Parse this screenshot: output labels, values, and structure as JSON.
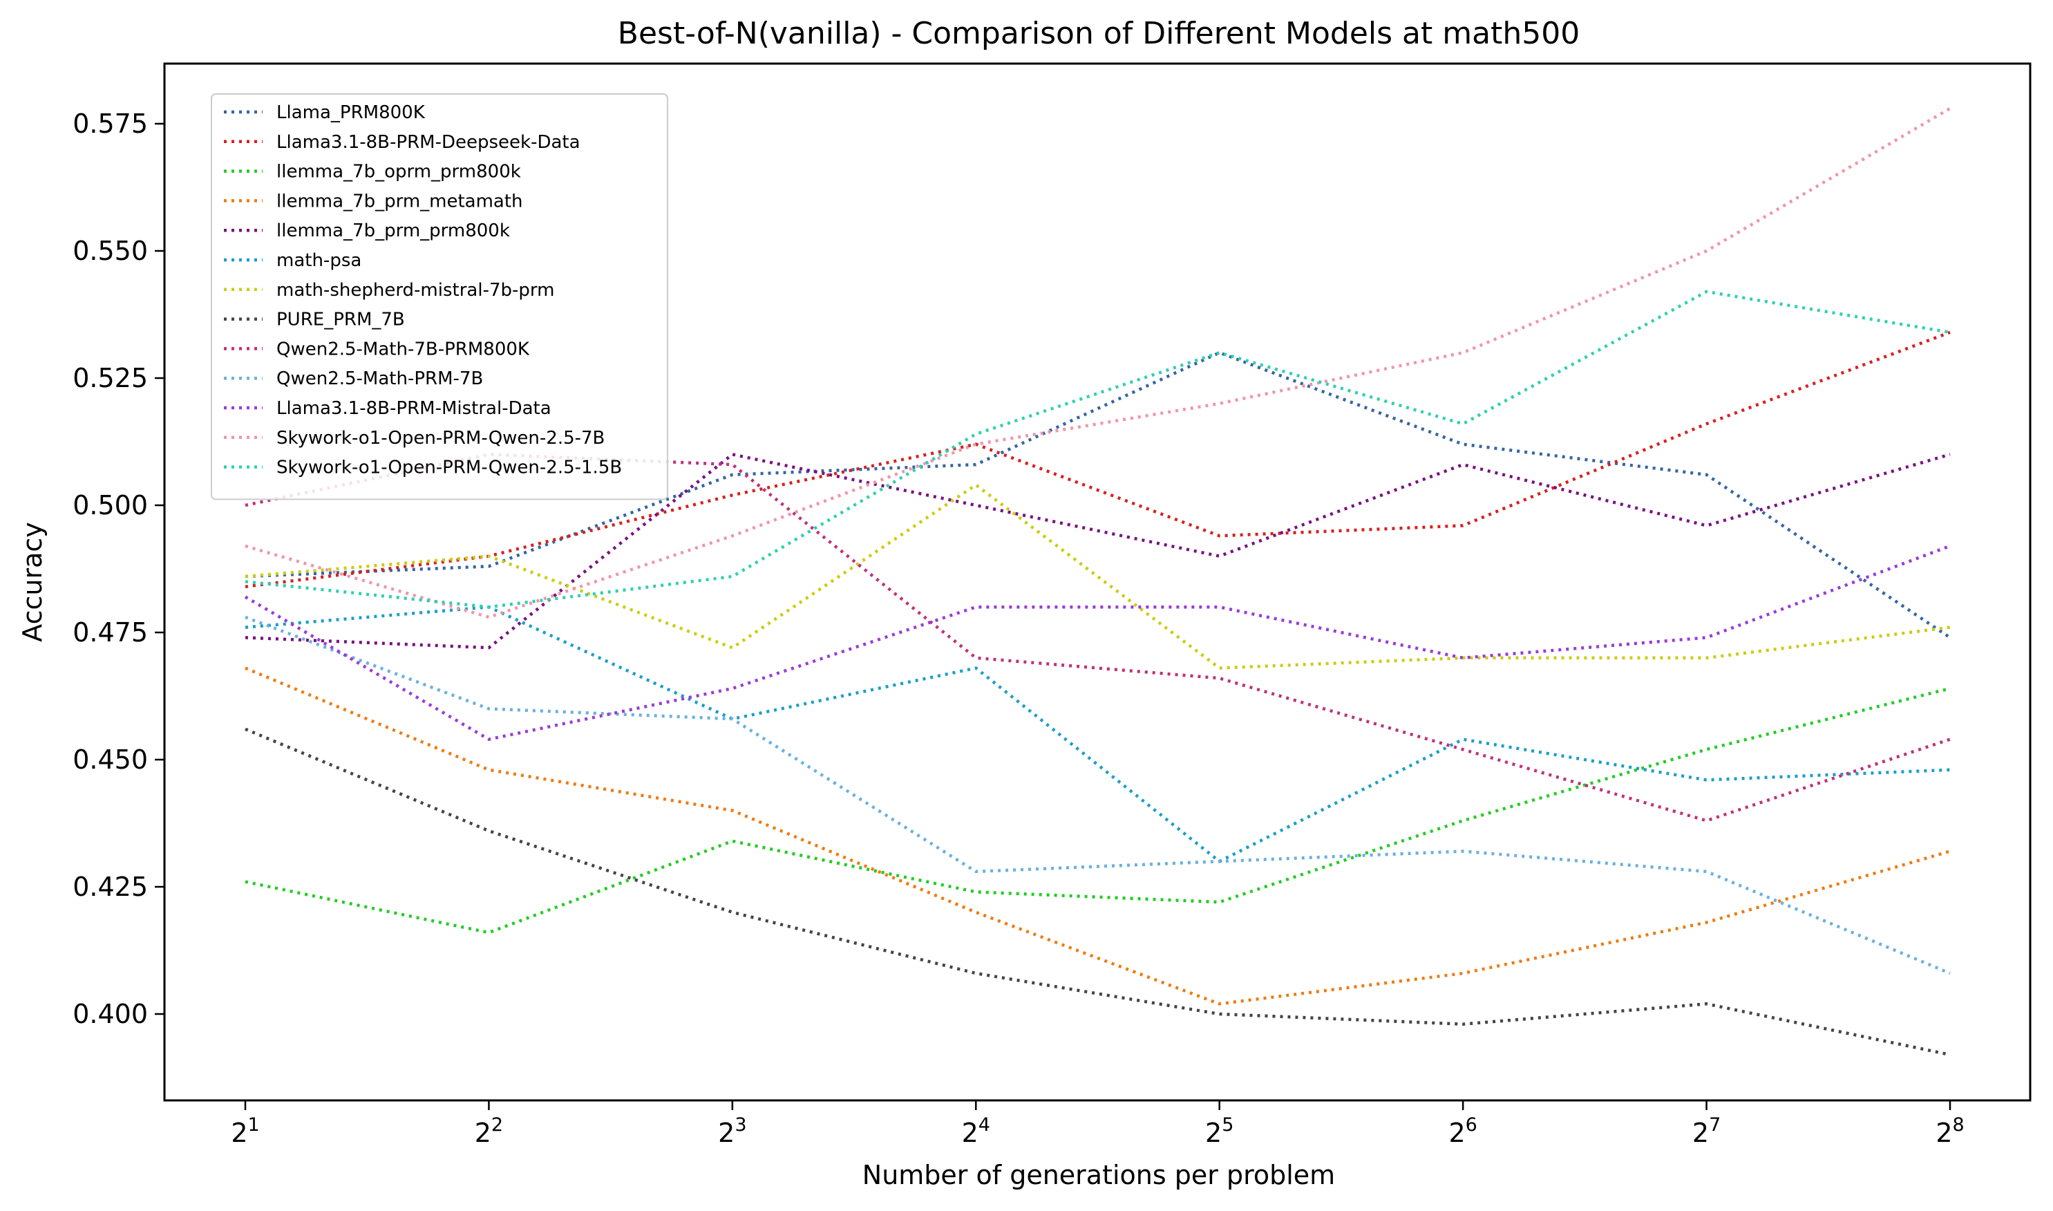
{
  "chart_data": {
    "type": "line",
    "title": "Best-of-N(vanilla) - Comparison of Different Models at math500",
    "xlabel": "Number of generations per problem",
    "ylabel": "Accuracy",
    "x": [
      2,
      4,
      8,
      16,
      32,
      64,
      128,
      256
    ],
    "x_tick_base": "2",
    "x_tick_exponents": [
      "1",
      "2",
      "3",
      "4",
      "5",
      "6",
      "7",
      "8"
    ],
    "x_scale": "log2",
    "y_ticks": [
      "0.400",
      "0.425",
      "0.450",
      "0.475",
      "0.500",
      "0.525",
      "0.550",
      "0.575"
    ],
    "ylim": [
      0.38,
      0.587
    ],
    "line_style": "dotted",
    "grid": false,
    "legend_position": "upper-left",
    "series": [
      {
        "name": "Llama_PRM800K",
        "color": "#3465a4",
        "values": [
          0.486,
          0.488,
          0.506,
          0.508,
          0.53,
          0.512,
          0.506,
          0.474
        ]
      },
      {
        "name": "Llama3.1-8B-PRM-Deepseek-Data",
        "color": "#d62020",
        "values": [
          0.484,
          0.49,
          0.502,
          0.512,
          0.494,
          0.496,
          0.516,
          0.534
        ]
      },
      {
        "name": "llemma_7b_oprm_prm800k",
        "color": "#22cc22",
        "values": [
          0.426,
          0.416,
          0.434,
          0.424,
          0.422,
          0.438,
          0.452,
          0.464
        ]
      },
      {
        "name": "llemma_7b_prm_metamath",
        "color": "#f07a10",
        "values": [
          0.468,
          0.448,
          0.44,
          0.42,
          0.402,
          0.408,
          0.418,
          0.432
        ]
      },
      {
        "name": "llemma_7b_prm_prm800k",
        "color": "#7a1080",
        "values": [
          0.474,
          0.472,
          0.51,
          0.5,
          0.49,
          0.508,
          0.496,
          0.51
        ]
      },
      {
        "name": "math-psa",
        "color": "#1a9ec8",
        "values": [
          0.476,
          0.48,
          0.458,
          0.468,
          0.43,
          0.454,
          0.446,
          0.448
        ]
      },
      {
        "name": "math-shepherd-mistral-7b-prm",
        "color": "#cccc10",
        "values": [
          0.486,
          0.49,
          0.472,
          0.504,
          0.468,
          0.47,
          0.47,
          0.476
        ]
      },
      {
        "name": "PURE_PRM_7B",
        "color": "#444444",
        "values": [
          0.456,
          0.436,
          0.42,
          0.408,
          0.4,
          0.398,
          0.402,
          0.392
        ]
      },
      {
        "name": "Qwen2.5-Math-7B-PRM800K",
        "color": "#c0307a",
        "values": [
          0.5,
          0.51,
          0.508,
          0.47,
          0.466,
          0.452,
          0.438,
          0.454
        ]
      },
      {
        "name": "Qwen2.5-Math-PRM-7B",
        "color": "#6ab0e0",
        "values": [
          0.478,
          0.46,
          0.458,
          0.428,
          0.43,
          0.432,
          0.428,
          0.408
        ]
      },
      {
        "name": "Llama3.1-8B-PRM-Mistral-Data",
        "color": "#9a3ad8",
        "values": [
          0.482,
          0.454,
          0.464,
          0.48,
          0.48,
          0.47,
          0.474,
          0.492
        ]
      },
      {
        "name": "Skywork-o1-Open-PRM-Qwen-2.5-7B",
        "color": "#f095aa",
        "values": [
          0.492,
          0.478,
          0.494,
          0.512,
          0.52,
          0.53,
          0.55,
          0.578
        ]
      },
      {
        "name": "Skywork-o1-Open-PRM-Qwen-2.5-1.5B",
        "color": "#2ed0b0",
        "values": [
          0.485,
          0.48,
          0.486,
          0.514,
          0.53,
          0.516,
          0.542,
          0.534
        ]
      }
    ]
  }
}
